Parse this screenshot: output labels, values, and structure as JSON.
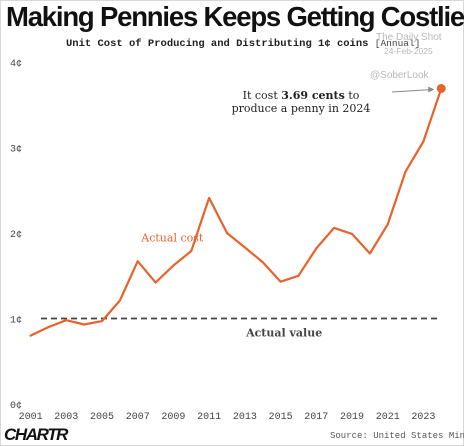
{
  "chart_data": {
    "type": "line",
    "title": "Making Pennies Keeps Getting Costlier",
    "subtitle": "Unit Cost of Producing and Distributing 1¢ coins",
    "subtitle_note": "[Annual]",
    "x": [
      2001,
      2002,
      2003,
      2004,
      2005,
      2006,
      2007,
      2008,
      2009,
      2010,
      2011,
      2012,
      2013,
      2014,
      2015,
      2016,
      2017,
      2018,
      2019,
      2020,
      2021,
      2022,
      2023,
      2024
    ],
    "series": [
      {
        "name": "Actual cost",
        "color": "#e8622c",
        "values": [
          0.8,
          0.9,
          0.98,
          0.93,
          0.97,
          1.21,
          1.67,
          1.42,
          1.62,
          1.79,
          2.41,
          2.0,
          1.83,
          1.66,
          1.43,
          1.5,
          1.82,
          2.06,
          1.99,
          1.76,
          2.1,
          2.72,
          3.07,
          3.69
        ],
        "highlight_last": true
      }
    ],
    "reference_line": {
      "name": "Actual value",
      "value": 1.0,
      "style": "dashed",
      "color": "#444444"
    },
    "y_ticks": [
      {
        "value": 0,
        "label": "0¢"
      },
      {
        "value": 1,
        "label": "1¢"
      },
      {
        "value": 2,
        "label": "2¢"
      },
      {
        "value": 3,
        "label": "3¢"
      },
      {
        "value": 4,
        "label": "4¢"
      }
    ],
    "x_ticks": [
      2001,
      2003,
      2005,
      2007,
      2009,
      2011,
      2013,
      2015,
      2017,
      2019,
      2021,
      2023
    ],
    "ylim": [
      0,
      4
    ],
    "xlim": [
      2000.8,
      2024.6
    ],
    "grid": false,
    "annotation": {
      "prefix": "It cost ",
      "value": "3.69 cents",
      "suffix": " to",
      "line2": "produce a penny in 2024"
    }
  },
  "watermark": {
    "line1": "The Daily Shot",
    "line2": "24-Feb-2025",
    "handle": "@SoberLook"
  },
  "footer": {
    "logo": "CHARTR",
    "source": "Source: United States Mint"
  }
}
